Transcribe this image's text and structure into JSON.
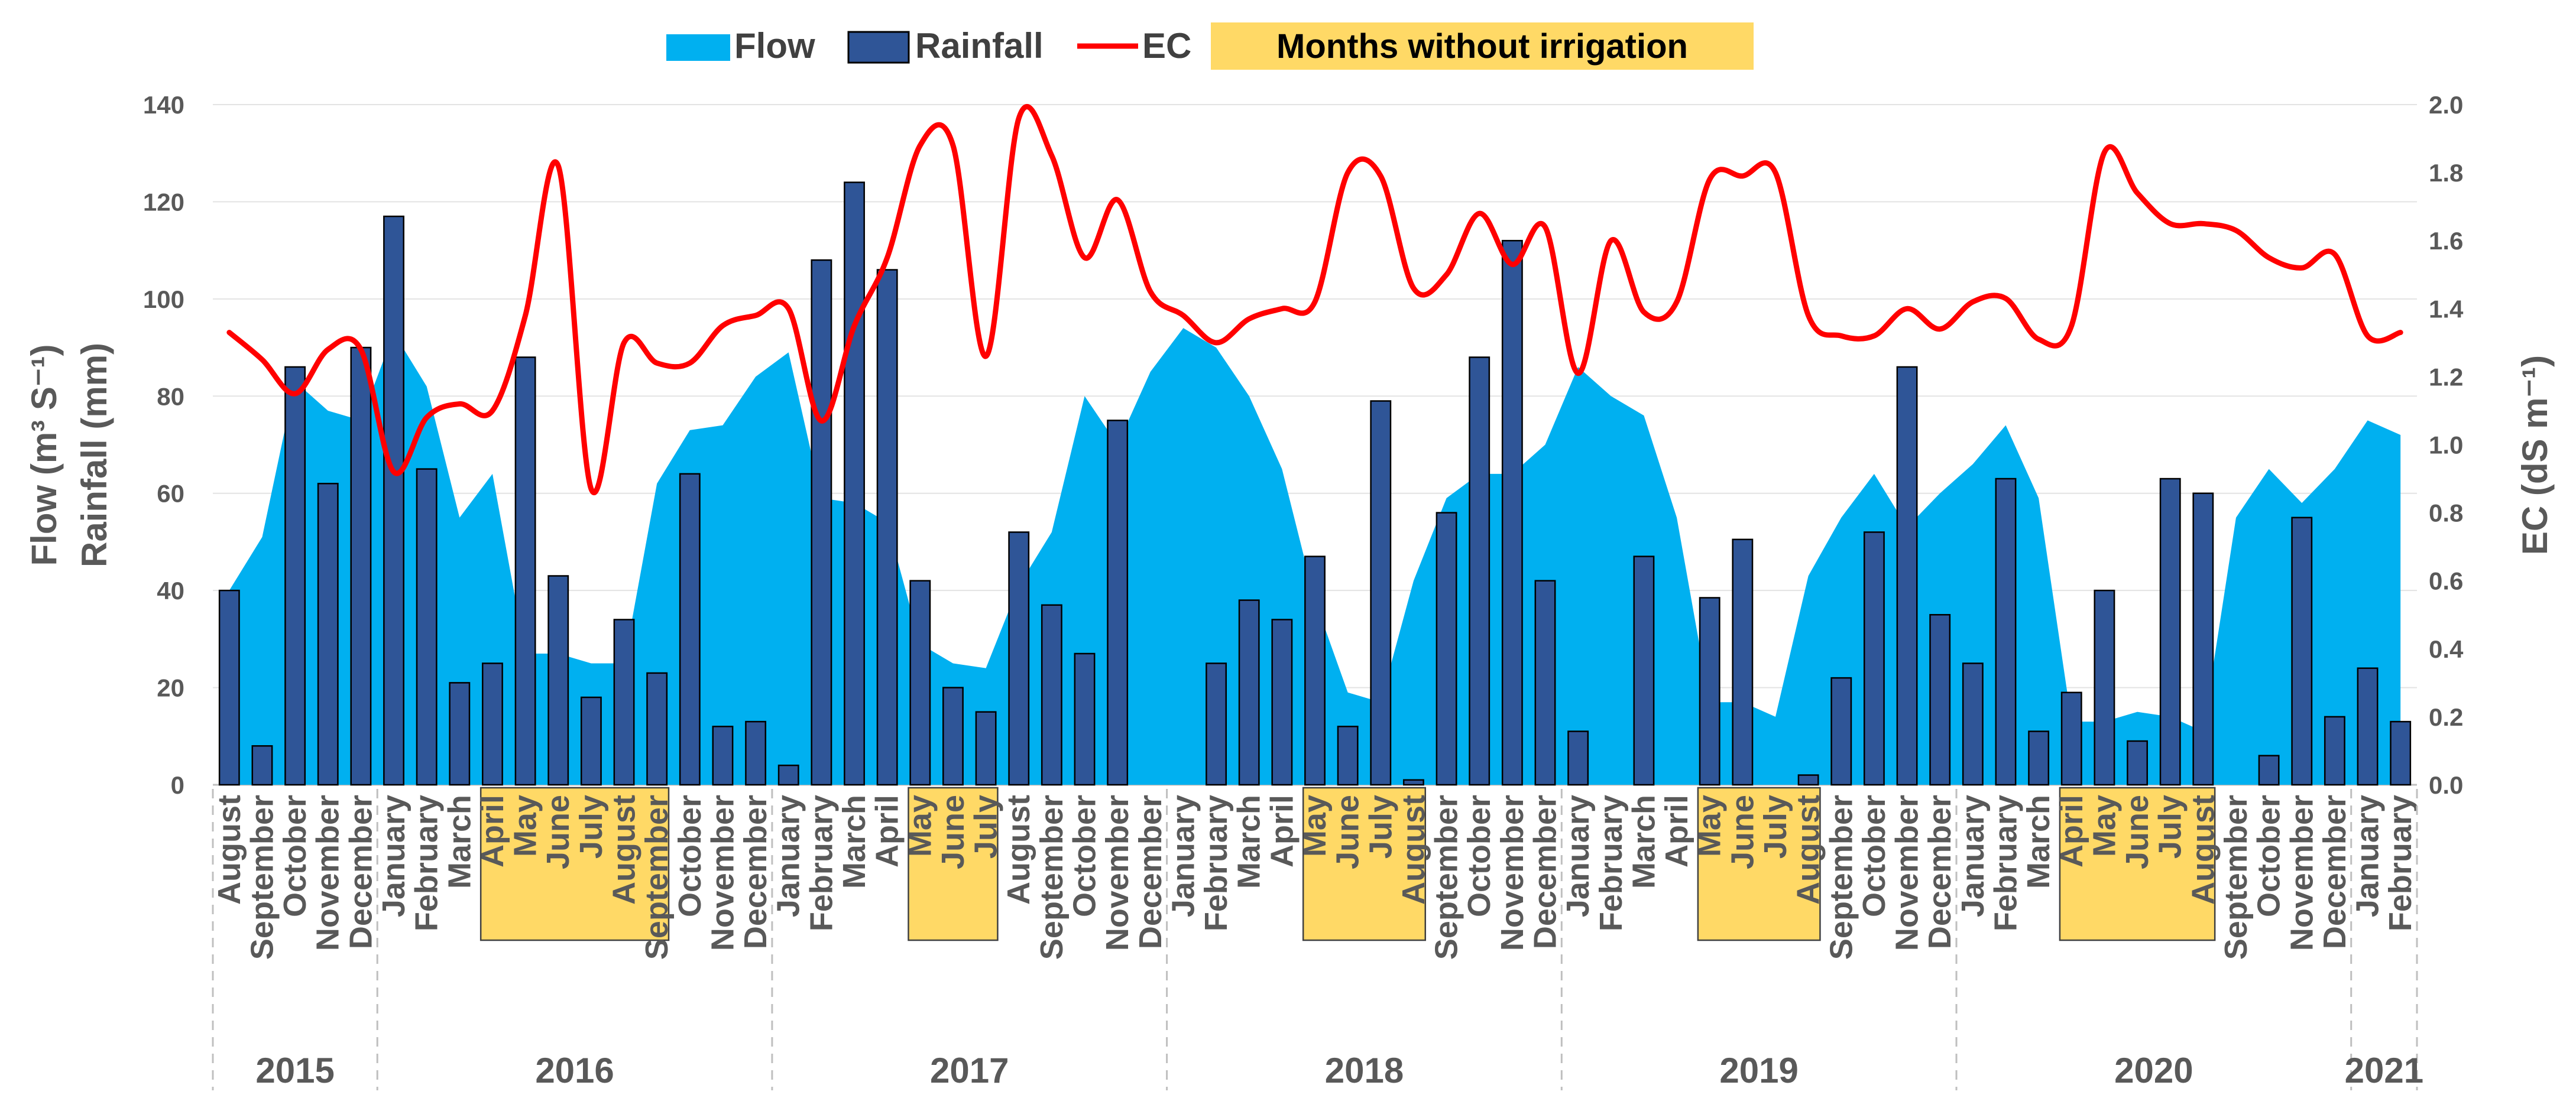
{
  "chart_data": {
    "type": "combo",
    "legend": {
      "flow": "Flow",
      "rainfall": "Rainfall",
      "ec": "EC",
      "no_irrigation": "Months without irrigation"
    },
    "left_axis": {
      "label_line1": "Flow  (m³ S⁻¹)",
      "label_line2": "Rainfall (mm)",
      "min": 0,
      "max": 140,
      "ticks": [
        "0",
        "20",
        "40",
        "60",
        "80",
        "100",
        "120",
        "140"
      ]
    },
    "right_axis": {
      "label": "EC (dS m⁻¹)",
      "min": 0,
      "max": 2,
      "ticks": [
        "0.0",
        "0.2",
        "0.4",
        "0.6",
        "0.8",
        "1.0",
        "1.2",
        "1.4",
        "1.6",
        "1.8",
        "2.0"
      ]
    },
    "months": [
      "August",
      "September",
      "October",
      "November",
      "December",
      "January",
      "February",
      "March",
      "April",
      "May",
      "June",
      "July",
      "August",
      "September",
      "October",
      "November",
      "December",
      "January",
      "February",
      "March",
      "April",
      "May",
      "June",
      "July",
      "August",
      "September",
      "October",
      "November",
      "December",
      "January",
      "February",
      "March",
      "April",
      "May",
      "June",
      "July",
      "August",
      "September",
      "October",
      "November",
      "December",
      "January",
      "February",
      "March",
      "April",
      "May",
      "June",
      "July",
      "August",
      "September",
      "October",
      "November",
      "December",
      "January",
      "February",
      "March",
      "April",
      "May",
      "June",
      "July",
      "August",
      "September",
      "October",
      "November",
      "December",
      "January",
      "February"
    ],
    "years": [
      {
        "label": "2015",
        "start": 0,
        "end": 4
      },
      {
        "label": "2016",
        "start": 5,
        "end": 16
      },
      {
        "label": "2017",
        "start": 17,
        "end": 28
      },
      {
        "label": "2018",
        "start": 29,
        "end": 40
      },
      {
        "label": "2019",
        "start": 41,
        "end": 52
      },
      {
        "label": "2020",
        "start": 53,
        "end": 64
      },
      {
        "label": "2021",
        "start": 65,
        "end": 66
      }
    ],
    "no_irrigation_periods": [
      {
        "start": 8,
        "end": 13
      },
      {
        "start": 21,
        "end": 23
      },
      {
        "start": 33,
        "end": 36
      },
      {
        "start": 45,
        "end": 48
      },
      {
        "start": 56,
        "end": 60
      }
    ],
    "flow": [
      40,
      51,
      83,
      77,
      75,
      93,
      82,
      55,
      64,
      27,
      27,
      25,
      25,
      62,
      73,
      74,
      84,
      89,
      59,
      58,
      54,
      29,
      25,
      24,
      41,
      52,
      80,
      70,
      85,
      94,
      90,
      80,
      65,
      38,
      19,
      17,
      42,
      59,
      64,
      64,
      70,
      86,
      80,
      76,
      55,
      17,
      17,
      14,
      43,
      55,
      64,
      53,
      60,
      66,
      74,
      59,
      13,
      13,
      15,
      14,
      11,
      55,
      65,
      58,
      65,
      75,
      72
    ],
    "rainfall": [
      40,
      8,
      86,
      62,
      90,
      117,
      65,
      21,
      25,
      88,
      43,
      18,
      34,
      23,
      64,
      12,
      13,
      4,
      108,
      124,
      106,
      42,
      20,
      15,
      52,
      37,
      27,
      75,
      0,
      0,
      25,
      38,
      34,
      47,
      12,
      79,
      1,
      56,
      88,
      112,
      42,
      11,
      0,
      47,
      0,
      38.5,
      50.5,
      0,
      2,
      22,
      52,
      86,
      35,
      25,
      63,
      11,
      19,
      40,
      9,
      63,
      60,
      0,
      6,
      55,
      14,
      24,
      13
    ],
    "ec": [
      1.33,
      1.25,
      1.15,
      1.28,
      1.28,
      0.92,
      1.08,
      1.12,
      1.1,
      1.38,
      1.82,
      0.87,
      1.3,
      1.24,
      1.24,
      1.35,
      1.38,
      1.4,
      1.07,
      1.35,
      1.55,
      1.88,
      1.88,
      1.26,
      1.96,
      1.85,
      1.55,
      1.72,
      1.45,
      1.38,
      1.3,
      1.37,
      1.4,
      1.42,
      1.8,
      1.79,
      1.46,
      1.5,
      1.68,
      1.53,
      1.64,
      1.21,
      1.6,
      1.39,
      1.42,
      1.78,
      1.79,
      1.8,
      1.38,
      1.32,
      1.32,
      1.4,
      1.34,
      1.42,
      1.43,
      1.31,
      1.35,
      1.86,
      1.74,
      1.65,
      1.65,
      1.63,
      1.55,
      1.52,
      1.56,
      1.32,
      1.33
    ]
  }
}
